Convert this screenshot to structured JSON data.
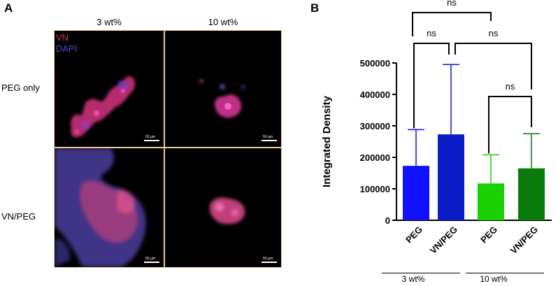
{
  "panel_a": {
    "letter": "A",
    "columns": [
      "3 wt%",
      "10 wt%"
    ],
    "rows": [
      "PEG only",
      "VN/PEG"
    ],
    "legend": {
      "vn": "VN",
      "dapi": "DAPI"
    },
    "scale_bar_text": "50 µm",
    "colors": {
      "vn": "#e0306a",
      "dapi": "#4b4ec8",
      "border": "#f1c98e"
    }
  },
  "panel_b": {
    "letter": "B",
    "group_labels": [
      "3 wt%",
      "10 wt%"
    ]
  },
  "chart_data": {
    "type": "bar",
    "categories": [
      "PEG",
      "VN/PEG",
      "PEG",
      "VN/PEG"
    ],
    "values": [
      173000,
      273000,
      117000,
      165000
    ],
    "errors": [
      115000,
      222000,
      91000,
      110000
    ],
    "colors": [
      "#1010ff",
      "#0a1cc6",
      "#19d000",
      "#0a7a0a"
    ],
    "ylabel": "Integrated Density",
    "xlabel": "",
    "ylim": [
      0,
      500000
    ],
    "yticks": [
      0,
      100000,
      200000,
      300000,
      400000,
      500000
    ],
    "ytick_labels": [
      "0",
      "100000",
      "200000",
      "300000",
      "400000",
      "500000"
    ],
    "groups": [
      {
        "label": "3 wt%",
        "bars": [
          0,
          1
        ]
      },
      {
        "label": "10 wt%",
        "bars": [
          2,
          3
        ]
      }
    ],
    "significance": [
      {
        "from": 0,
        "to": 1,
        "label": "ns"
      },
      {
        "from": 1,
        "to": 3,
        "label": "ns"
      },
      {
        "from": 2,
        "to": 3,
        "label": "ns"
      },
      {
        "from": "g1",
        "to": "g2",
        "label": "ns"
      }
    ],
    "grid": false
  }
}
